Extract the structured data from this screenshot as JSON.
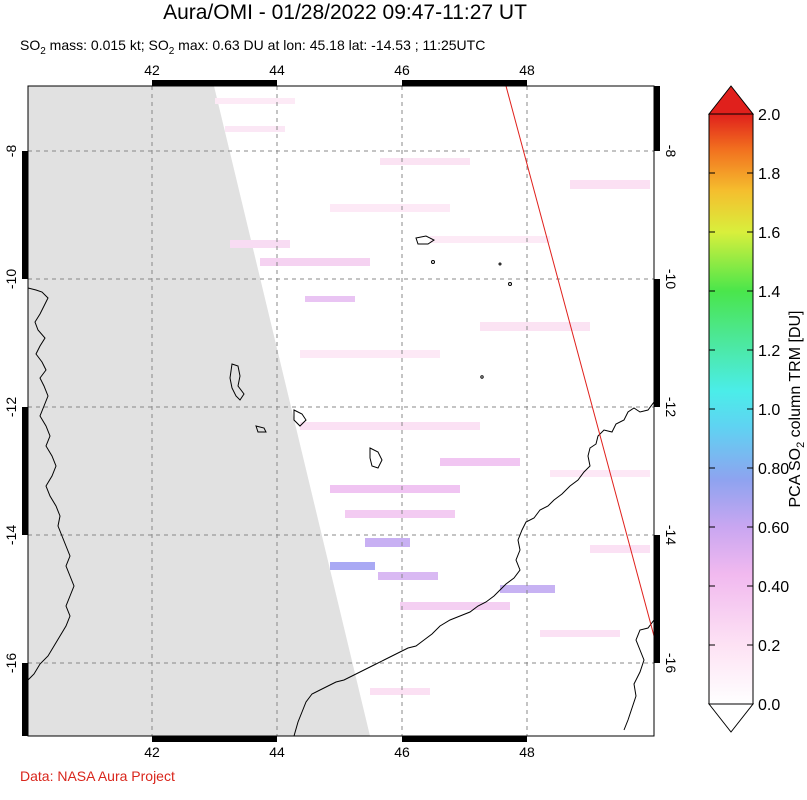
{
  "header": {
    "title": "Aura/OMI - 01/28/2022 09:47-11:27 UT",
    "subtitle_parts": {
      "so2_a": "SO",
      "sub_a": "2",
      "mass_text": " mass: 0.015 kt; SO",
      "sub_b": "2",
      "max_text": " max: 0.63 DU at lon: 45.18 lat: -14.53 ; 11:25UTC"
    }
  },
  "map": {
    "lon_ticks": [
      "42",
      "44",
      "46",
      "48"
    ],
    "lat_ticks": [
      "-8",
      "-10",
      "-12",
      "-14",
      "-16"
    ],
    "lon_range": [
      40.0,
      50.0
    ],
    "lat_range": [
      -7.0,
      -17.2
    ],
    "no_data_color": "#e1e1e1",
    "coast_color": "#000000",
    "track_color": "#e0201c"
  },
  "colorbar": {
    "ticks": [
      "2.0",
      "1.8",
      "1.6",
      "1.4",
      "1.2",
      "1.0",
      "0.80",
      "0.60",
      "0.40",
      "0.2",
      "0.0"
    ],
    "label_main": "PCA SO",
    "label_sub": "2",
    "label_rest": " column TRM [DU]",
    "range": [
      0.0,
      2.0
    ]
  },
  "footer": {
    "credit": "Data: NASA Aura Project"
  }
}
